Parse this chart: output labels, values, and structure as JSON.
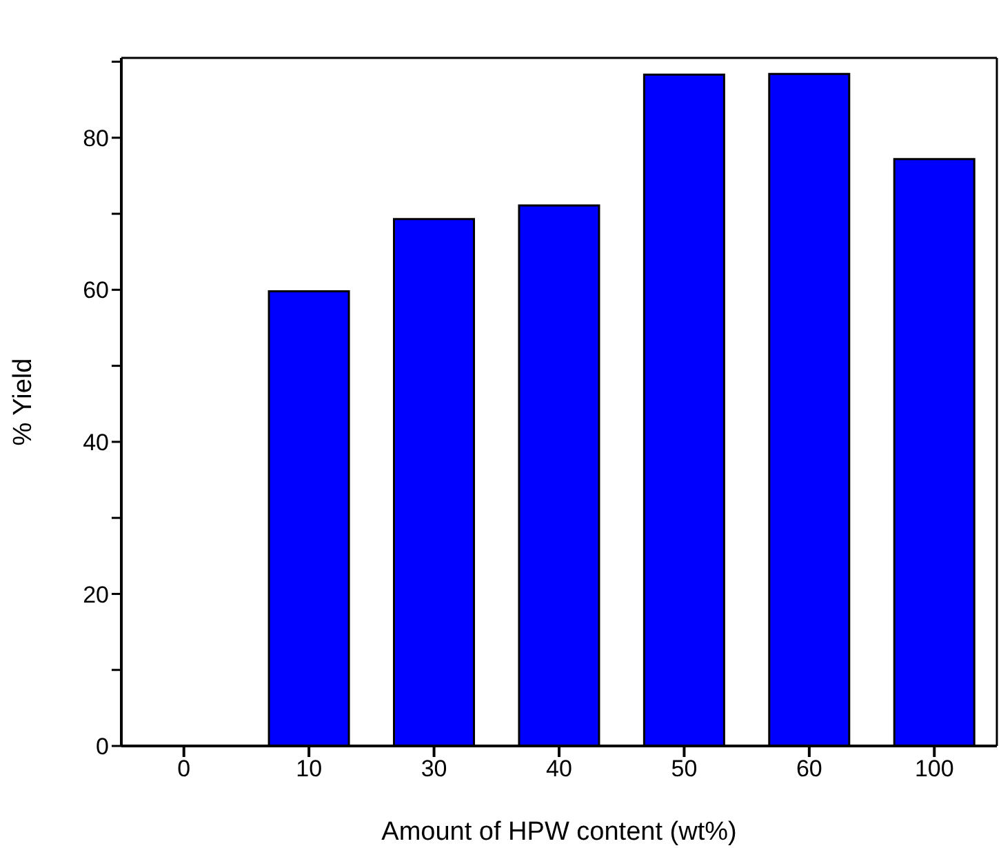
{
  "chart_data": {
    "type": "bar",
    "xlabel": "Amount of HPW content (wt%)",
    "ylabel": "% Yield",
    "categories": [
      "0",
      "10",
      "30",
      "40",
      "50",
      "60",
      "100"
    ],
    "values": [
      0,
      59.8,
      69.3,
      71.1,
      88.3,
      88.4,
      77.2
    ],
    "color": "#0000ff",
    "ylim": [
      0,
      90.5
    ],
    "yticks": [
      0,
      {
        "value": 10,
        "label": null
      },
      20,
      {
        "value": 30,
        "label": null
      },
      40,
      {
        "value": 50,
        "label": null
      },
      60,
      {
        "value": 70,
        "label": null
      },
      80,
      {
        "value": 90,
        "label": null
      }
    ],
    "grid": false
  }
}
